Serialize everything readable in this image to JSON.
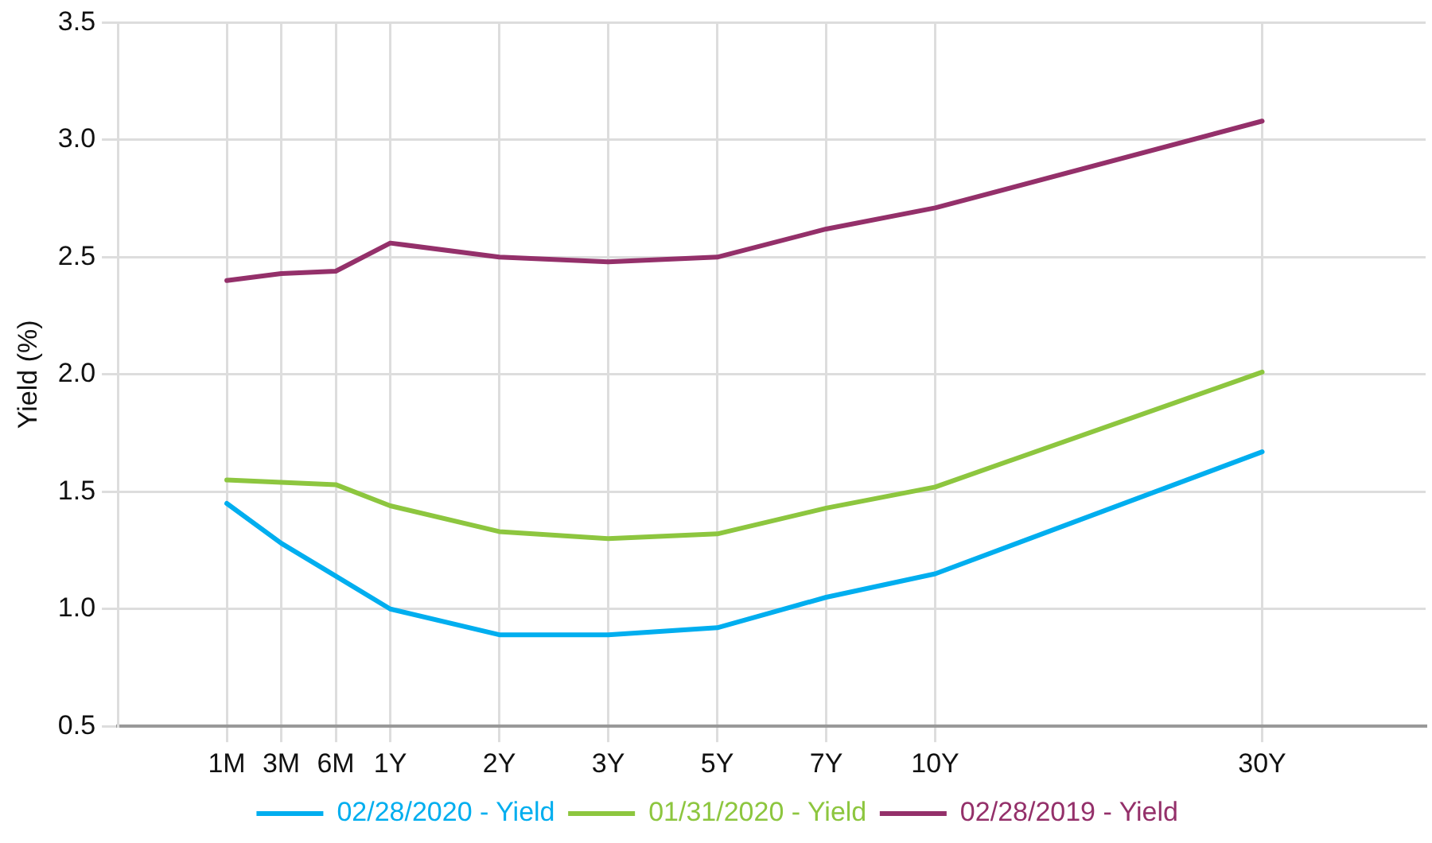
{
  "chart_data": {
    "type": "line",
    "ylabel": "Yield (%)",
    "categories": [
      null,
      null,
      "1M",
      "3M",
      "6M",
      "1Y",
      null,
      "2Y",
      null,
      "3Y",
      null,
      "5Y",
      null,
      "7Y",
      null,
      "10Y",
      null,
      null,
      null,
      null,
      null,
      "30Y",
      null,
      null,
      null
    ],
    "series": [
      {
        "name": "02/28/2020 - Yield",
        "color": "#00aeef",
        "values": [
          null,
          null,
          1.45,
          1.28,
          1.14,
          1.0,
          null,
          0.89,
          null,
          0.89,
          null,
          0.92,
          null,
          1.05,
          null,
          1.15,
          null,
          null,
          null,
          null,
          null,
          1.67,
          null,
          null,
          null
        ]
      },
      {
        "name": "01/31/2020 - Yield",
        "color": "#8dc63f",
        "values": [
          null,
          null,
          1.55,
          1.54,
          1.53,
          1.44,
          null,
          1.33,
          null,
          1.3,
          null,
          1.32,
          null,
          1.43,
          null,
          1.52,
          null,
          null,
          null,
          null,
          null,
          2.01,
          null,
          null,
          null
        ]
      },
      {
        "name": "02/28/2019 - Yield",
        "color": "#94306a",
        "values": [
          null,
          null,
          2.4,
          2.43,
          2.44,
          2.56,
          null,
          2.5,
          null,
          2.48,
          null,
          2.5,
          null,
          2.62,
          null,
          2.71,
          null,
          null,
          null,
          null,
          null,
          3.08,
          null,
          null,
          null
        ]
      }
    ],
    "ylim": [
      0.5,
      3.5
    ],
    "yticks": [
      0.5,
      {
        "value": 1,
        "label": "1.0"
      },
      1.5,
      {
        "value": 2,
        "label": "2.0"
      },
      2.5,
      {
        "value": 3,
        "label": "3.0"
      },
      3.5
    ],
    "grid": true,
    "legend": "bottom",
    "marker": "none",
    "line_style": "solid"
  }
}
